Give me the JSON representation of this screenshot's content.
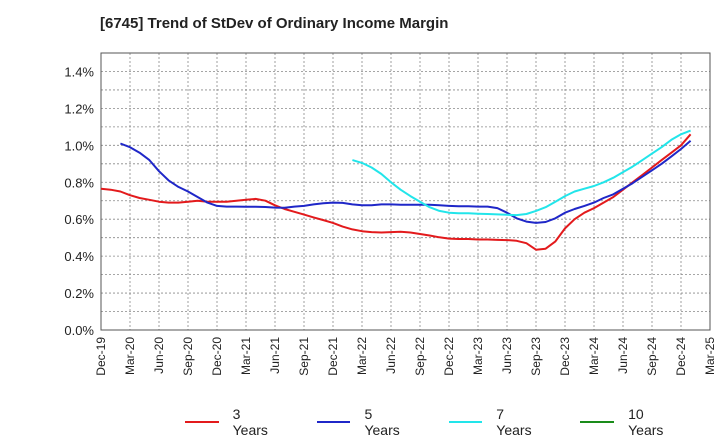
{
  "chart_data": {
    "type": "line",
    "title": "[6745]  Trend of StDev of Ordinary Income Margin",
    "xlabel": "",
    "ylabel": "",
    "x_ticks": [
      "Dec-19",
      "Mar-20",
      "Jun-20",
      "Sep-20",
      "Dec-20",
      "Mar-21",
      "Jun-21",
      "Sep-21",
      "Dec-21",
      "Mar-22",
      "Jun-22",
      "Sep-22",
      "Dec-22",
      "Mar-23",
      "Jun-23",
      "Sep-23",
      "Dec-23",
      "Mar-24",
      "Jun-24",
      "Sep-24",
      "Dec-24",
      "Mar-25"
    ],
    "y_ticks": [
      "0.0%",
      "0.2%",
      "0.4%",
      "0.6%",
      "0.8%",
      "1.0%",
      "1.2%",
      "1.4%"
    ],
    "ylim": [
      0,
      1.5
    ],
    "grid": true,
    "legend_position": "bottom",
    "series": [
      {
        "name": "3 Years",
        "color": "#e31a1c",
        "points": [
          [
            0,
            0.765
          ],
          [
            0.33,
            0.76
          ],
          [
            0.67,
            0.75
          ],
          [
            1,
            0.73
          ],
          [
            1.33,
            0.715
          ],
          [
            1.67,
            0.705
          ],
          [
            2,
            0.695
          ],
          [
            2.33,
            0.69
          ],
          [
            2.67,
            0.69
          ],
          [
            3,
            0.695
          ],
          [
            3.33,
            0.7
          ],
          [
            3.67,
            0.695
          ],
          [
            4,
            0.695
          ],
          [
            4.33,
            0.695
          ],
          [
            4.67,
            0.7
          ],
          [
            5,
            0.705
          ],
          [
            5.33,
            0.71
          ],
          [
            5.67,
            0.7
          ],
          [
            6,
            0.675
          ],
          [
            6.33,
            0.655
          ],
          [
            6.67,
            0.64
          ],
          [
            7,
            0.625
          ],
          [
            7.33,
            0.61
          ],
          [
            7.67,
            0.595
          ],
          [
            8,
            0.58
          ],
          [
            8.33,
            0.56
          ],
          [
            8.67,
            0.545
          ],
          [
            9,
            0.535
          ],
          [
            9.33,
            0.53
          ],
          [
            9.67,
            0.528
          ],
          [
            10,
            0.53
          ],
          [
            10.33,
            0.532
          ],
          [
            10.67,
            0.528
          ],
          [
            11,
            0.52
          ],
          [
            11.33,
            0.512
          ],
          [
            11.67,
            0.502
          ],
          [
            12,
            0.495
          ],
          [
            12.33,
            0.493
          ],
          [
            12.67,
            0.493
          ],
          [
            13,
            0.49
          ],
          [
            13.33,
            0.49
          ],
          [
            13.67,
            0.488
          ],
          [
            14,
            0.487
          ],
          [
            14.33,
            0.483
          ],
          [
            14.67,
            0.47
          ],
          [
            15,
            0.435
          ],
          [
            15.33,
            0.44
          ],
          [
            15.67,
            0.48
          ],
          [
            16,
            0.55
          ],
          [
            16.33,
            0.6
          ],
          [
            16.67,
            0.635
          ],
          [
            17,
            0.66
          ],
          [
            17.33,
            0.69
          ],
          [
            17.67,
            0.72
          ],
          [
            18,
            0.76
          ],
          [
            18.33,
            0.8
          ],
          [
            18.67,
            0.84
          ],
          [
            19,
            0.88
          ],
          [
            19.33,
            0.92
          ],
          [
            19.67,
            0.96
          ],
          [
            20,
            1.0
          ],
          [
            20.33,
            1.06
          ]
        ]
      },
      {
        "name": "5 Years",
        "color": "#1f27c8",
        "points": [
          [
            0.67,
            1.01
          ],
          [
            1,
            0.99
          ],
          [
            1.33,
            0.96
          ],
          [
            1.67,
            0.92
          ],
          [
            2,
            0.86
          ],
          [
            2.33,
            0.81
          ],
          [
            2.67,
            0.775
          ],
          [
            3,
            0.75
          ],
          [
            3.33,
            0.72
          ],
          [
            3.67,
            0.69
          ],
          [
            4,
            0.672
          ],
          [
            4.33,
            0.668
          ],
          [
            4.67,
            0.668
          ],
          [
            5,
            0.667
          ],
          [
            5.33,
            0.667
          ],
          [
            5.67,
            0.666
          ],
          [
            6,
            0.663
          ],
          [
            6.33,
            0.662
          ],
          [
            6.67,
            0.668
          ],
          [
            7,
            0.672
          ],
          [
            7.33,
            0.68
          ],
          [
            7.67,
            0.686
          ],
          [
            8,
            0.69
          ],
          [
            8.33,
            0.688
          ],
          [
            8.67,
            0.68
          ],
          [
            9,
            0.675
          ],
          [
            9.33,
            0.676
          ],
          [
            9.67,
            0.68
          ],
          [
            10,
            0.68
          ],
          [
            10.33,
            0.678
          ],
          [
            10.67,
            0.678
          ],
          [
            11,
            0.678
          ],
          [
            11.33,
            0.678
          ],
          [
            11.67,
            0.675
          ],
          [
            12,
            0.672
          ],
          [
            12.33,
            0.67
          ],
          [
            12.67,
            0.67
          ],
          [
            13,
            0.668
          ],
          [
            13.33,
            0.668
          ],
          [
            13.67,
            0.66
          ],
          [
            14,
            0.635
          ],
          [
            14.33,
            0.605
          ],
          [
            14.67,
            0.587
          ],
          [
            15,
            0.58
          ],
          [
            15.33,
            0.585
          ],
          [
            15.67,
            0.605
          ],
          [
            16,
            0.635
          ],
          [
            16.33,
            0.655
          ],
          [
            16.67,
            0.672
          ],
          [
            17,
            0.69
          ],
          [
            17.33,
            0.715
          ],
          [
            17.67,
            0.735
          ],
          [
            18,
            0.765
          ],
          [
            18.33,
            0.795
          ],
          [
            18.67,
            0.83
          ],
          [
            19,
            0.865
          ],
          [
            19.33,
            0.9
          ],
          [
            19.67,
            0.94
          ],
          [
            20,
            0.98
          ],
          [
            20.33,
            1.025
          ]
        ]
      },
      {
        "name": "7 Years",
        "color": "#22e5ea",
        "points": [
          [
            8.67,
            0.92
          ],
          [
            9,
            0.905
          ],
          [
            9.33,
            0.88
          ],
          [
            9.67,
            0.845
          ],
          [
            10,
            0.8
          ],
          [
            10.33,
            0.76
          ],
          [
            10.67,
            0.725
          ],
          [
            11,
            0.695
          ],
          [
            11.33,
            0.665
          ],
          [
            11.67,
            0.645
          ],
          [
            12,
            0.635
          ],
          [
            12.33,
            0.632
          ],
          [
            12.67,
            0.632
          ],
          [
            13,
            0.63
          ],
          [
            13.33,
            0.628
          ],
          [
            13.67,
            0.626
          ],
          [
            14,
            0.624
          ],
          [
            14.33,
            0.622
          ],
          [
            14.67,
            0.628
          ],
          [
            15,
            0.645
          ],
          [
            15.33,
            0.665
          ],
          [
            15.67,
            0.695
          ],
          [
            16,
            0.725
          ],
          [
            16.33,
            0.75
          ],
          [
            16.67,
            0.765
          ],
          [
            17,
            0.78
          ],
          [
            17.33,
            0.8
          ],
          [
            17.67,
            0.825
          ],
          [
            18,
            0.855
          ],
          [
            18.33,
            0.885
          ],
          [
            18.67,
            0.92
          ],
          [
            19,
            0.955
          ],
          [
            19.33,
            0.99
          ],
          [
            19.67,
            1.03
          ],
          [
            20,
            1.06
          ],
          [
            20.33,
            1.08
          ]
        ]
      },
      {
        "name": "10 Years",
        "color": "#1a8c1a",
        "points": []
      }
    ]
  }
}
